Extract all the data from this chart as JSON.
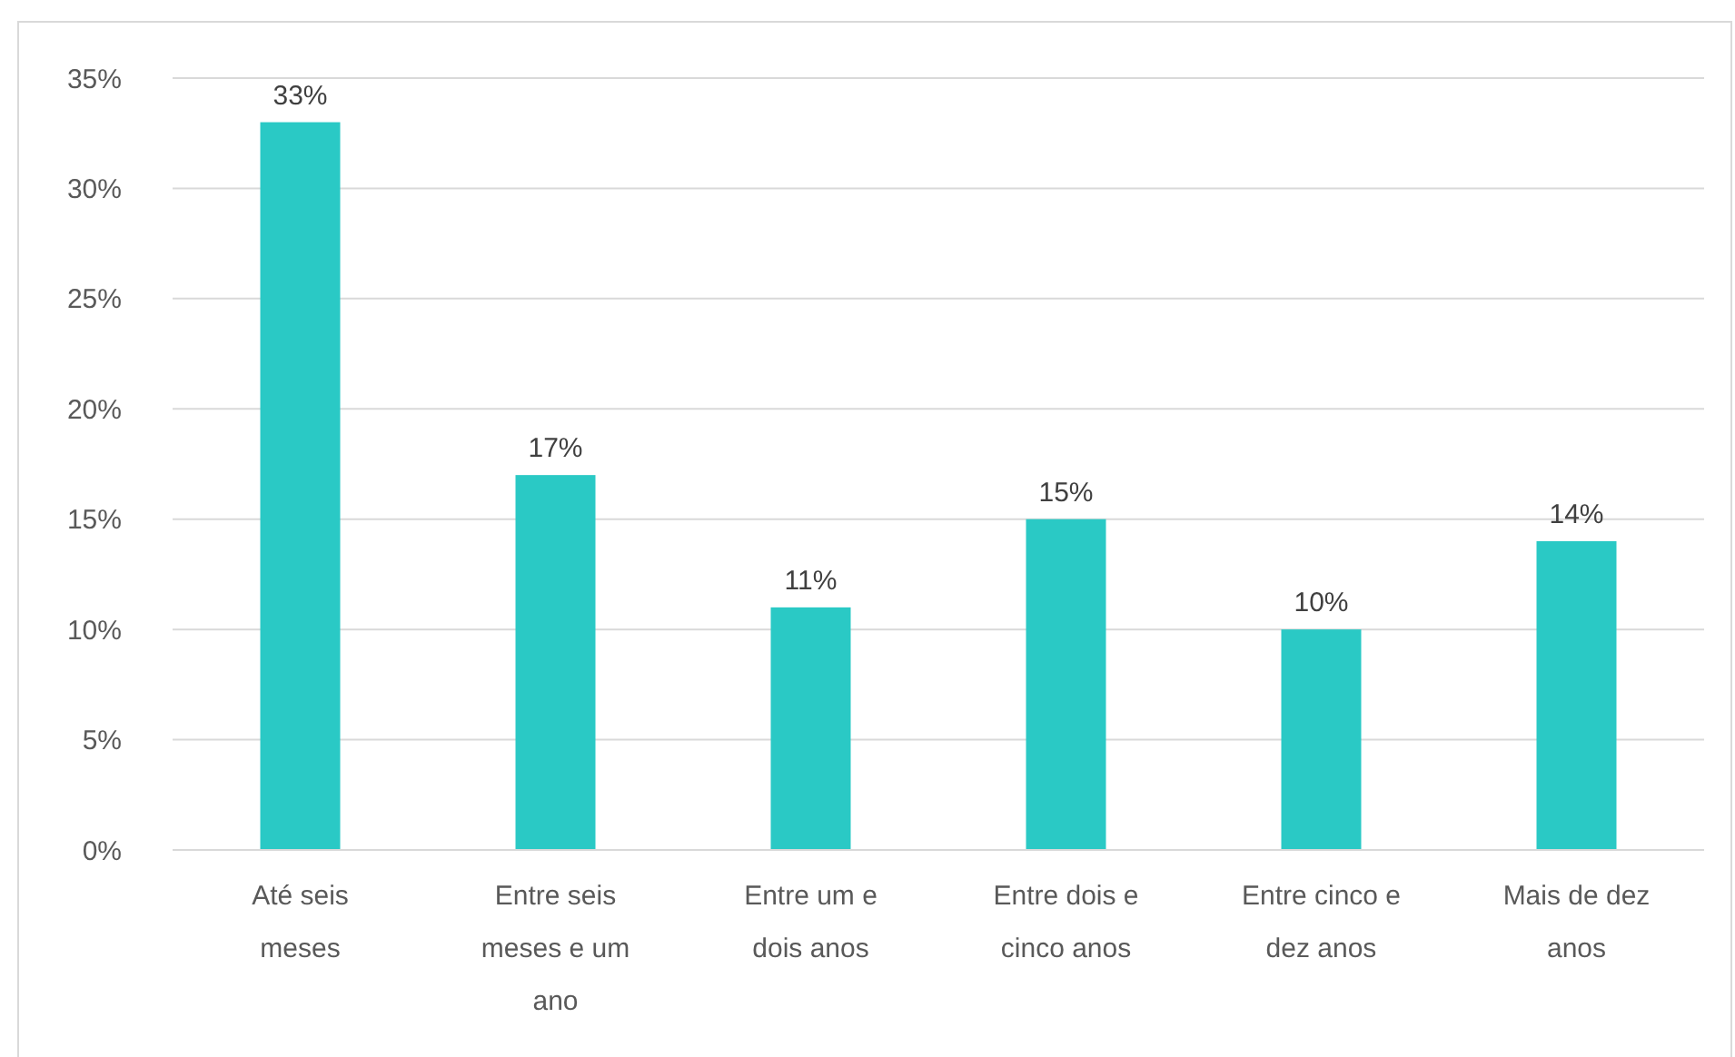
{
  "chart_data": {
    "type": "bar",
    "categories": [
      "Até seis meses",
      "Entre seis meses e um ano",
      "Entre um e dois anos",
      "Entre dois e cinco anos",
      "Entre cinco e dez anos",
      "Mais de dez anos"
    ],
    "values": [
      33,
      17,
      11,
      15,
      10,
      14
    ],
    "value_labels": [
      "33%",
      "17%",
      "11%",
      "15%",
      "10%",
      "14%"
    ],
    "color": "#2ac9c5",
    "ylim": [
      0,
      35
    ],
    "yticks": [
      {
        "value": 0,
        "label": "0%"
      },
      {
        "value": 5,
        "label": "5%"
      },
      {
        "value": 10,
        "label": "10%"
      },
      {
        "value": 15,
        "label": "15%"
      },
      {
        "value": 20,
        "label": "20%"
      },
      {
        "value": 25,
        "label": "25%"
      },
      {
        "value": 30,
        "label": "30%"
      },
      {
        "value": 35,
        "label": "35%"
      }
    ],
    "grid": "y"
  }
}
